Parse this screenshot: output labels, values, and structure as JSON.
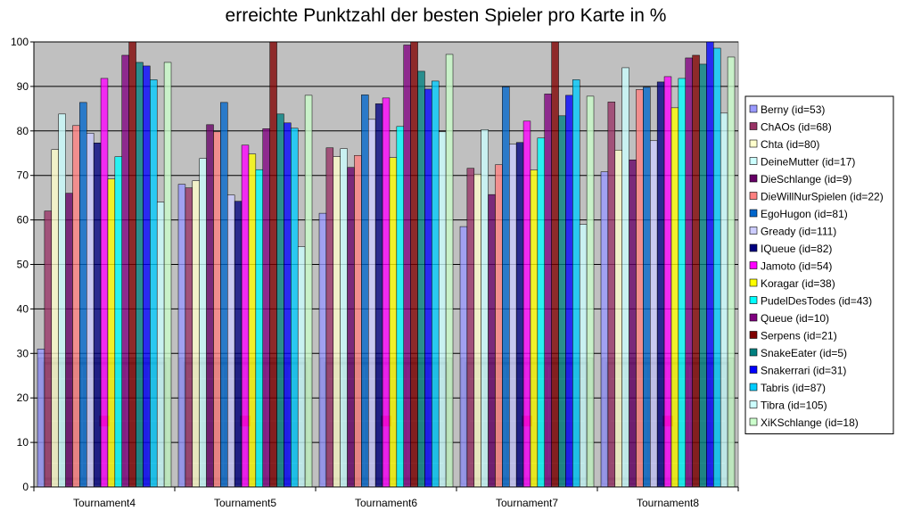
{
  "chart_data": {
    "type": "bar",
    "title": "erreichte Punktzahl der besten Spieler pro Karte in %",
    "xlabel": "",
    "ylabel": "",
    "ylim": [
      0,
      100
    ],
    "yticks": [
      0,
      10,
      20,
      30,
      40,
      50,
      60,
      70,
      80,
      90,
      100
    ],
    "grid": true,
    "legend_position": "right",
    "categories": [
      "Tournament4",
      "Tournament5",
      "Tournament6",
      "Tournament7",
      "Tournament8"
    ],
    "series": [
      {
        "name": "Berny (id=53)",
        "color": "#9999ff",
        "values": [
          31,
          68,
          61.5,
          58.5,
          70.8
        ]
      },
      {
        "name": "ChAOs (id=68)",
        "color": "#993366",
        "values": [
          62,
          67.2,
          76.2,
          71.6,
          86.5
        ]
      },
      {
        "name": "Chta (id=80)",
        "color": "#ffffcc",
        "values": [
          75.8,
          68.8,
          74.2,
          70.3,
          75.7
        ]
      },
      {
        "name": "DeineMutter (id=17)",
        "color": "#ccffff",
        "values": [
          83.8,
          73.8,
          76.0,
          80.3,
          94.2
        ]
      },
      {
        "name": "DieSchlange (id=9)",
        "color": "#660066",
        "values": [
          66,
          81.4,
          71.8,
          65.7,
          73.5
        ]
      },
      {
        "name": "DieWillNurSpielen (id=22)",
        "color": "#ff8080",
        "values": [
          81.2,
          79.8,
          74.5,
          72.4,
          89.3
        ]
      },
      {
        "name": "EgoHugon (id=81)",
        "color": "#0066cc",
        "values": [
          86.4,
          86.4,
          88.1,
          89.9,
          89.8
        ]
      },
      {
        "name": "Gready (id=111)",
        "color": "#ccccff",
        "values": [
          79.5,
          65.6,
          82.6,
          77.0,
          77.8
        ]
      },
      {
        "name": "IQueue (id=82)",
        "color": "#000080",
        "values": [
          77.3,
          64.2,
          86.1,
          77.4,
          91.0
        ]
      },
      {
        "name": "Jamoto (id=54)",
        "color": "#ff00ff",
        "values": [
          91.8,
          76.8,
          87.4,
          82.2,
          92.2
        ]
      },
      {
        "name": "Koragar (id=38)",
        "color": "#ffff00",
        "values": [
          69.2,
          74.8,
          74.0,
          71.2,
          85.2
        ]
      },
      {
        "name": "PudelDesTodes (id=43)",
        "color": "#00ffff",
        "values": [
          74.2,
          71.3,
          81.0,
          78.4,
          91.8
        ]
      },
      {
        "name": "Queue (id=10)",
        "color": "#800080",
        "values": [
          97.0,
          80.5,
          99.3,
          88.3,
          96.4
        ]
      },
      {
        "name": "Serpens (id=21)",
        "color": "#800000",
        "values": [
          100,
          100,
          100,
          100,
          97.0
        ]
      },
      {
        "name": "SnakeEater (id=5)",
        "color": "#008080",
        "values": [
          95.4,
          83.8,
          93.4,
          83.4,
          95.0
        ]
      },
      {
        "name": "Snakerrari (id=31)",
        "color": "#0000ff",
        "values": [
          94.6,
          81.8,
          89.4,
          88.0,
          100
        ]
      },
      {
        "name": "Tabris (id=87)",
        "color": "#00ccff",
        "values": [
          91.5,
          80.6,
          91.2,
          91.5,
          98.6
        ]
      },
      {
        "name": "Tibra (id=105)",
        "color": "#ccffff",
        "values": [
          64.0,
          54.0,
          79.8,
          59.0,
          84.0
        ]
      },
      {
        "name": "XiKSchlange (id=18)",
        "color": "#ccffcc",
        "values": [
          95.4,
          88.0,
          97.2,
          87.8,
          96.6
        ]
      }
    ]
  }
}
